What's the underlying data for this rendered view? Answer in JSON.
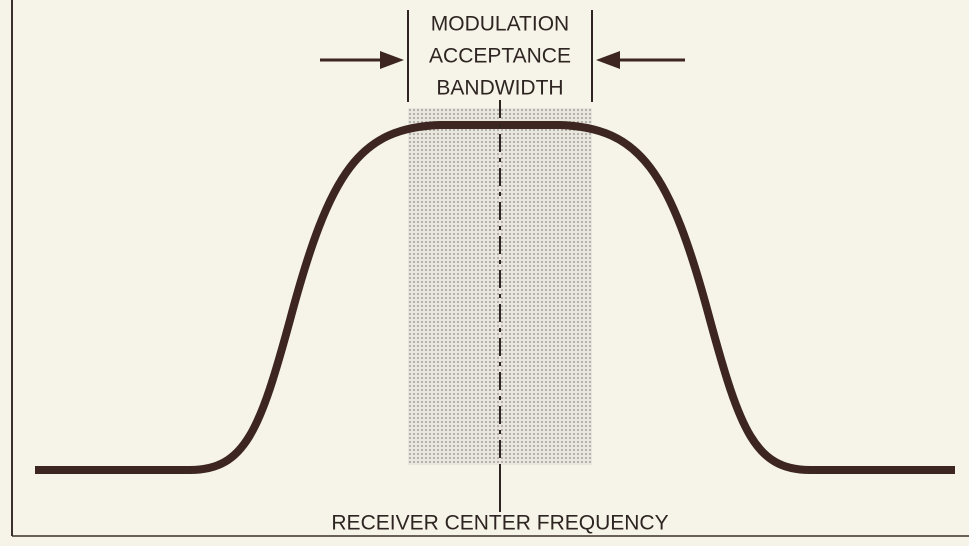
{
  "bandwidth_label": [
    "MODULATION",
    "ACCEPTANCE",
    "BANDWIDTH"
  ],
  "center_label": "RECEIVER CENTER FREQUENCY"
}
